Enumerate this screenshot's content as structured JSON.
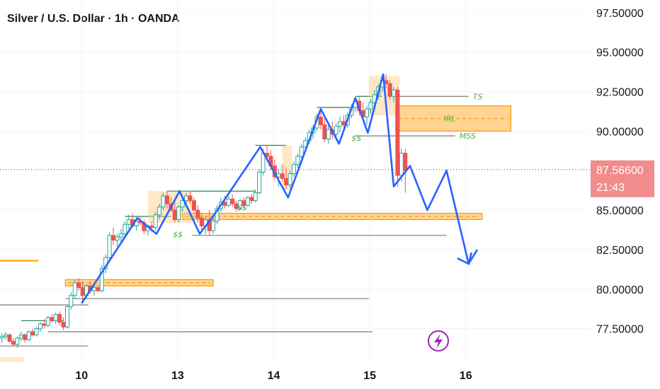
{
  "header": {
    "title": "Silver / U.S. Dollar · 1h · OANDA"
  },
  "colors": {
    "up": "#26a69a",
    "down": "#ef5350",
    "up_fill": "#ffffff",
    "zone_fill": "#ffcc80",
    "zone_stroke": "#ff9800",
    "path": "#2962ff",
    "level": "#7b7b7b",
    "green_level": "#1b8a4a",
    "price_tag": "#f28b8b",
    "lightning": "#9c27b0"
  },
  "chart_data": {
    "type": "candlestick",
    "title": "Silver / U.S. Dollar · 1h · OANDA",
    "xlabel": "",
    "ylabel": "",
    "x_ticks": [
      "10",
      "13",
      "14",
      "15",
      "16"
    ],
    "x_tick_pos": [
      1.0,
      2.0,
      3.0,
      4.0,
      5.0
    ],
    "xlim": [
      0.15,
      6.3
    ],
    "ylim": [
      75.2,
      98.3
    ],
    "y_ticks": [
      "97.50000",
      "95.00000",
      "92.50000",
      "90.00000",
      "85.00000",
      "82.50000",
      "80.00000",
      "77.50000"
    ],
    "y_tick_values": [
      97.5,
      95.0,
      92.5,
      90.0,
      85.0,
      82.5,
      80.0,
      77.5
    ],
    "last_price": {
      "value": 87.566,
      "label": "87.56600",
      "countdown": "21:43"
    },
    "candles": [
      [
        0.17,
        76.9,
        77.2,
        76.6,
        77.0
      ],
      [
        0.21,
        77.0,
        77.3,
        76.8,
        77.1
      ],
      [
        0.25,
        77.1,
        77.2,
        76.6,
        76.7
      ],
      [
        0.29,
        76.7,
        76.9,
        76.4,
        76.5
      ],
      [
        0.33,
        76.5,
        77.0,
        76.3,
        76.9
      ],
      [
        0.37,
        76.9,
        77.3,
        76.7,
        77.1
      ],
      [
        0.41,
        77.1,
        77.2,
        76.6,
        76.8
      ],
      [
        0.45,
        76.8,
        77.4,
        76.7,
        77.3
      ],
      [
        0.49,
        77.3,
        77.5,
        77.0,
        77.1
      ],
      [
        0.53,
        77.1,
        77.6,
        77.0,
        77.5
      ],
      [
        0.57,
        77.5,
        77.9,
        77.3,
        77.8
      ],
      [
        0.61,
        77.8,
        78.1,
        77.5,
        77.7
      ],
      [
        0.65,
        77.7,
        78.3,
        77.6,
        78.2
      ],
      [
        0.69,
        78.2,
        78.4,
        77.9,
        78.0
      ],
      [
        0.73,
        78.0,
        78.5,
        77.8,
        78.4
      ],
      [
        0.77,
        78.4,
        78.6,
        77.7,
        77.9
      ],
      [
        0.81,
        77.9,
        78.2,
        77.4,
        77.6
      ],
      [
        0.85,
        77.6,
        79.0,
        77.5,
        78.9
      ],
      [
        0.89,
        78.9,
        79.8,
        78.7,
        79.6
      ],
      [
        0.93,
        79.6,
        80.6,
        79.4,
        80.4
      ],
      [
        0.97,
        80.4,
        80.7,
        79.9,
        80.1
      ],
      [
        1.01,
        80.1,
        80.5,
        79.3,
        79.6
      ],
      [
        1.05,
        79.6,
        80.3,
        79.4,
        80.2
      ],
      [
        1.09,
        80.2,
        80.5,
        79.7,
        79.9
      ],
      [
        1.13,
        79.9,
        80.3,
        79.6,
        80.1
      ],
      [
        1.17,
        80.1,
        80.2,
        79.8,
        79.9
      ],
      [
        1.21,
        79.9,
        81.5,
        79.8,
        81.3
      ],
      [
        1.25,
        81.3,
        82.2,
        81.0,
        82.0
      ],
      [
        1.29,
        82.0,
        83.6,
        81.8,
        83.4
      ],
      [
        1.33,
        83.4,
        83.9,
        82.8,
        83.1
      ],
      [
        1.37,
        83.1,
        83.5,
        82.7,
        83.3
      ],
      [
        1.41,
        83.3,
        83.8,
        83.0,
        83.5
      ],
      [
        1.45,
        83.5,
        84.3,
        83.3,
        84.1
      ],
      [
        1.49,
        84.1,
        84.7,
        83.8,
        84.4
      ],
      [
        1.53,
        84.4,
        84.8,
        83.9,
        84.0
      ],
      [
        1.57,
        84.0,
        84.5,
        83.7,
        84.3
      ],
      [
        1.61,
        84.3,
        84.6,
        84.0,
        84.2
      ],
      [
        1.65,
        84.2,
        84.4,
        83.5,
        83.7
      ],
      [
        1.69,
        83.7,
        84.1,
        83.4,
        84.0
      ],
      [
        1.73,
        84.0,
        84.3,
        83.6,
        83.9
      ],
      [
        1.77,
        83.9,
        84.9,
        83.7,
        84.7
      ],
      [
        1.81,
        84.7,
        85.4,
        84.4,
        85.2
      ],
      [
        1.85,
        85.2,
        86.1,
        85.0,
        85.9
      ],
      [
        1.89,
        85.9,
        86.2,
        85.1,
        85.4
      ],
      [
        1.93,
        85.4,
        85.8,
        84.9,
        85.0
      ],
      [
        1.97,
        85.0,
        85.5,
        84.2,
        84.4
      ],
      [
        2.01,
        84.4,
        85.3,
        84.2,
        85.2
      ],
      [
        2.05,
        85.2,
        85.9,
        84.9,
        85.6
      ],
      [
        2.09,
        85.6,
        86.1,
        85.2,
        85.9
      ],
      [
        2.13,
        85.9,
        86.2,
        85.4,
        85.6
      ],
      [
        2.17,
        85.6,
        85.8,
        84.8,
        85.0
      ],
      [
        2.21,
        85.0,
        85.3,
        84.2,
        84.5
      ],
      [
        2.25,
        84.5,
        84.8,
        83.7,
        84.0
      ],
      [
        2.29,
        84.0,
        84.6,
        83.5,
        84.4
      ],
      [
        2.33,
        84.4,
        85.0,
        83.4,
        83.7
      ],
      [
        2.37,
        83.7,
        84.5,
        83.5,
        84.3
      ],
      [
        2.41,
        84.3,
        85.3,
        84.1,
        85.1
      ],
      [
        2.45,
        85.1,
        85.8,
        84.9,
        85.5
      ],
      [
        2.49,
        85.5,
        85.9,
        85.1,
        85.3
      ],
      [
        2.53,
        85.3,
        85.9,
        85.2,
        85.7
      ],
      [
        2.57,
        85.7,
        86.0,
        85.2,
        85.4
      ],
      [
        2.61,
        85.4,
        85.6,
        84.9,
        85.1
      ],
      [
        2.65,
        85.1,
        85.7,
        85.0,
        85.6
      ],
      [
        2.69,
        85.6,
        85.8,
        85.1,
        85.3
      ],
      [
        2.73,
        85.3,
        85.9,
        85.2,
        85.8
      ],
      [
        2.77,
        85.8,
        86.0,
        85.4,
        85.6
      ],
      [
        2.81,
        85.6,
        86.3,
        85.5,
        86.1
      ],
      [
        2.85,
        86.1,
        87.6,
        86.0,
        87.4
      ],
      [
        2.89,
        87.4,
        88.9,
        87.2,
        88.6
      ],
      [
        2.93,
        88.6,
        89.1,
        88.1,
        88.4
      ],
      [
        2.97,
        88.4,
        88.8,
        87.5,
        87.8
      ],
      [
        3.01,
        87.8,
        88.2,
        86.9,
        87.1
      ],
      [
        3.05,
        87.1,
        87.6,
        86.5,
        87.3
      ],
      [
        3.09,
        87.3,
        87.9,
        86.8,
        87.0
      ],
      [
        3.13,
        87.0,
        87.7,
        86.3,
        86.6
      ],
      [
        3.17,
        86.6,
        87.5,
        86.4,
        87.3
      ],
      [
        3.21,
        87.3,
        88.1,
        87.1,
        87.9
      ],
      [
        3.25,
        87.9,
        88.6,
        87.7,
        88.4
      ],
      [
        3.29,
        88.4,
        89.2,
        88.2,
        89.0
      ],
      [
        3.33,
        89.0,
        89.6,
        88.7,
        89.4
      ],
      [
        3.37,
        89.4,
        90.1,
        89.2,
        89.9
      ],
      [
        3.41,
        89.9,
        90.4,
        89.5,
        90.2
      ],
      [
        3.45,
        90.2,
        91.1,
        90.0,
        90.9
      ],
      [
        3.49,
        90.9,
        91.3,
        90.1,
        90.4
      ],
      [
        3.53,
        90.4,
        90.8,
        89.3,
        89.5
      ],
      [
        3.57,
        89.5,
        90.4,
        89.2,
        90.1
      ],
      [
        3.61,
        90.1,
        90.6,
        89.5,
        89.8
      ],
      [
        3.65,
        89.8,
        90.5,
        89.4,
        90.3
      ],
      [
        3.69,
        90.3,
        90.9,
        89.9,
        90.6
      ],
      [
        3.73,
        90.6,
        91.0,
        90.1,
        90.4
      ],
      [
        3.77,
        90.4,
        91.2,
        90.2,
        91.0
      ],
      [
        3.81,
        91.0,
        91.7,
        90.8,
        91.5
      ],
      [
        3.85,
        91.5,
        92.1,
        91.2,
        91.9
      ],
      [
        3.89,
        91.9,
        92.2,
        91.0,
        91.3
      ],
      [
        3.93,
        91.3,
        91.8,
        90.6,
        90.9
      ],
      [
        3.97,
        90.9,
        91.6,
        90.4,
        91.4
      ],
      [
        4.01,
        91.4,
        92.0,
        91.1,
        91.8
      ],
      [
        4.05,
        91.8,
        92.6,
        91.5,
        92.3
      ],
      [
        4.09,
        92.3,
        93.0,
        92.0,
        92.8
      ],
      [
        4.13,
        92.8,
        93.5,
        92.5,
        93.2
      ],
      [
        4.17,
        93.2,
        93.6,
        92.7,
        93.0
      ],
      [
        4.21,
        93.0,
        93.2,
        92.0,
        92.2
      ],
      [
        4.25,
        92.2,
        92.8,
        91.8,
        92.6
      ],
      [
        4.29,
        92.6,
        92.8,
        86.5,
        87.2
      ],
      [
        4.33,
        87.2,
        88.9,
        86.8,
        88.6
      ],
      [
        4.37,
        88.6,
        88.9,
        86.1,
        87.5
      ]
    ],
    "zones": [
      {
        "name": "top-zone",
        "x0": 3.99,
        "x1": 4.31,
        "y0": 91.0,
        "y1": 93.5,
        "dash": false
      },
      {
        "name": "irl-zone",
        "x0": 4.27,
        "x1": 5.47,
        "y0": 90.0,
        "y1": 91.6,
        "dash": true
      },
      {
        "name": "mid-zone",
        "x0": 2.05,
        "x1": 5.17,
        "y0": 84.4,
        "y1": 84.8,
        "dash": true
      },
      {
        "name": "left-zone",
        "x0": 0.83,
        "x1": 2.37,
        "y0": 80.2,
        "y1": 80.6,
        "dash": true
      },
      {
        "name": "small-zone-1",
        "x0": 1.69,
        "x1": 2.15,
        "y0": 84.2,
        "y1": 86.2,
        "dash": false
      },
      {
        "name": "small-zone-2",
        "x0": 3.09,
        "x1": 3.19,
        "y0": 86.3,
        "y1": 89.1,
        "dash": false
      },
      {
        "name": "small-zone-3",
        "x0": 0.15,
        "x1": 0.4,
        "y0": 75.4,
        "y1": 75.7,
        "dash": false
      }
    ],
    "levels": [
      {
        "name": "ts-level",
        "x0": 4.25,
        "x1": 5.03,
        "y": 92.2,
        "label": "TS"
      },
      {
        "name": "mss-level",
        "x0": 3.85,
        "x1": 4.89,
        "y": 89.7,
        "label": "MSS"
      },
      {
        "name": "low-level-1",
        "x0": 2.15,
        "x1": 4.8,
        "y": 83.4,
        "label": ""
      },
      {
        "name": "low-level-2",
        "x0": 0.83,
        "x1": 3.99,
        "y": 79.4,
        "label": ""
      },
      {
        "name": "low-level-3",
        "x0": 0.15,
        "x1": 1.07,
        "y": 79.0,
        "label": ""
      },
      {
        "name": "low-level-4",
        "x0": 0.65,
        "x1": 4.03,
        "y": 77.3,
        "label": ""
      },
      {
        "name": "low-level-5",
        "x0": 0.15,
        "x1": 1.07,
        "y": 76.4,
        "label": ""
      },
      {
        "name": "orange-left-level",
        "x0": 0.15,
        "x1": 0.55,
        "y": 81.8,
        "label": ""
      }
    ],
    "green_levels": [
      [
        0.37,
        0.81,
        78.0
      ],
      [
        1.45,
        1.93,
        84.6
      ],
      [
        1.89,
        2.81,
        86.2
      ],
      [
        2.81,
        3.13,
        89.1
      ],
      [
        3.45,
        3.89,
        91.5
      ],
      [
        3.85,
        4.13,
        92.2
      ]
    ],
    "liquidity_labels": [
      {
        "x": 1.95,
        "y": 83.3,
        "label": "$$"
      },
      {
        "x": 2.62,
        "y": 85.0,
        "label": "$$"
      },
      {
        "x": 3.81,
        "y": 89.4,
        "label": "$$"
      }
    ],
    "path": [
      [
        1.0,
        79.1
      ],
      [
        1.58,
        84.5
      ],
      [
        1.78,
        83.5
      ],
      [
        2.02,
        86.2
      ],
      [
        2.23,
        83.5
      ],
      [
        2.38,
        84.7
      ],
      [
        2.86,
        89.0
      ],
      [
        3.15,
        85.8
      ],
      [
        3.49,
        91.4
      ],
      [
        3.68,
        89.2
      ],
      [
        3.85,
        92.1
      ],
      [
        3.98,
        89.9
      ],
      [
        4.14,
        93.6
      ],
      [
        4.25,
        86.5
      ],
      [
        4.42,
        87.8
      ],
      [
        4.6,
        85.0
      ],
      [
        4.8,
        87.5
      ],
      [
        5.03,
        81.6
      ],
      [
        5.12,
        82.5
      ]
    ]
  }
}
